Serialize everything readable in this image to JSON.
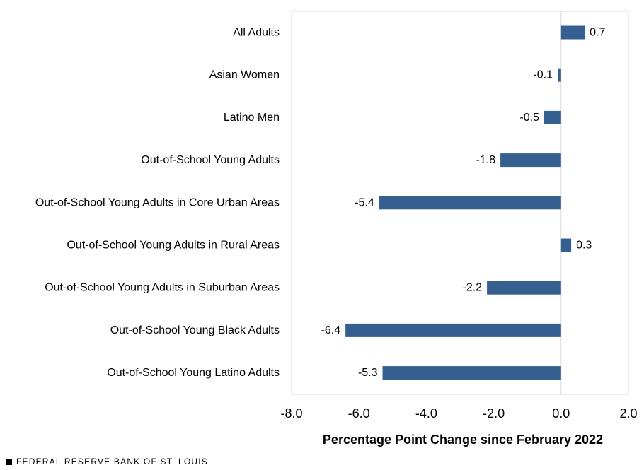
{
  "chart_data": {
    "type": "bar",
    "orientation": "horizontal",
    "categories": [
      "All Adults",
      "Asian Women",
      "Latino Men",
      "Out-of-School Young Adults",
      "Out-of-School Young Adults in Core Urban Areas",
      "Out-of-School Young Adults in Rural Areas",
      "Out-of-School Young Adults in Suburban Areas",
      "Out-of-School Young Black Adults",
      "Out-of-School Young Latino Adults"
    ],
    "values": [
      0.7,
      -0.1,
      -0.5,
      -1.8,
      -5.4,
      0.3,
      -2.2,
      -6.4,
      -5.3
    ],
    "value_labels": [
      "0.7",
      "-0.1",
      "-0.5",
      "-1.8",
      "-5.4",
      "0.3",
      "-2.2",
      "-6.4",
      "-5.3"
    ],
    "title": "",
    "xlabel": "Percentage Point Change since February 2022",
    "ylabel": "",
    "xlim": [
      -8.0,
      2.0
    ],
    "xticks": [
      -8.0,
      -6.0,
      -4.0,
      -2.0,
      0.0,
      2.0
    ],
    "xtick_labels": [
      "-8.0",
      "-6.0",
      "-4.0",
      "-2.0",
      "0.0",
      "2.0"
    ],
    "grid": false,
    "legend": "none",
    "colors": {
      "bar": "#355f91",
      "frame": "#d9d9d9",
      "zero_line": "#d9d9d9",
      "text": "#000000"
    }
  },
  "footer": {
    "source": "FEDERAL RESERVE BANK OF ST. LOUIS"
  }
}
